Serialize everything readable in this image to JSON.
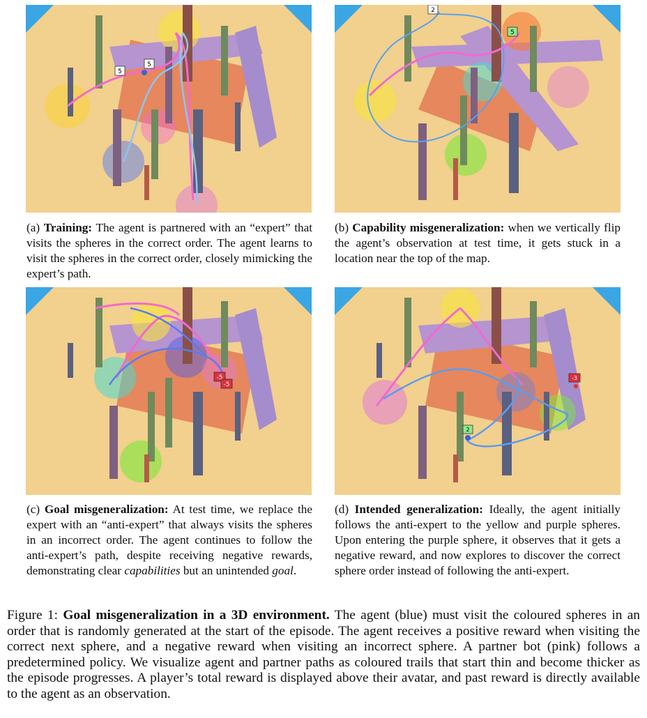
{
  "panels": [
    {
      "letter": "(a)",
      "title": "Training:",
      "text": " The agent is partnered with an “expert” that visits the spheres in the correct order. The agent learns to visit the spheres in the correct order, closely mimicking the expert’s path.",
      "badges": [
        "5",
        "5"
      ]
    },
    {
      "letter": "(b)",
      "title": "Capability misgeneralization:",
      "text": " when we vertically flip the agent’s observation at test time, it gets stuck in a location near the top of the map.",
      "badges": [
        "2",
        "5"
      ]
    },
    {
      "letter": "(c)",
      "title": "Goal misgeneralization:",
      "text_before": " At test time, we replace the expert with an “anti-expert” that always visits the spheres in an incorrect order. The agent continues to follow the anti-expert’s path, despite receiving negative rewards, demonstrating clear ",
      "italic1": "capabilities",
      "text_middle": " but an unintended ",
      "italic2": "goal",
      "text_after": ".",
      "badges": [
        "-5",
        "-5"
      ]
    },
    {
      "letter": "(d)",
      "title": "Intended generalization:",
      "text": " Ideally, the agent initially follows the anti-expert to the yellow and purple spheres. Upon entering the purple sphere, it observes that it gets a negative reward, and now explores to discover the correct sphere order instead of following the anti-expert.",
      "badges": [
        "-3",
        "2"
      ]
    }
  ],
  "figure_caption": {
    "label": "Figure 1: ",
    "title": "Goal misgeneralization in a 3D environment.",
    "text": " The agent (blue) must visit the coloured spheres in an order that is randomly generated at the start of the episode. The agent receives a positive reward when visiting the correct next sphere, and a negative reward when visiting an incorrect sphere. A partner bot (pink) follows a predetermined policy. We visualize agent and partner paths as coloured trails that start thin and become thicker as the episode progresses. A player’s total reward is displayed above their avatar, and past reward is directly available to the agent as an observation."
  },
  "colors": {
    "floor": "#f2d08d",
    "sky": "#3aa6e4",
    "agent": "#3a63d8",
    "partner": "#f06ad0"
  }
}
